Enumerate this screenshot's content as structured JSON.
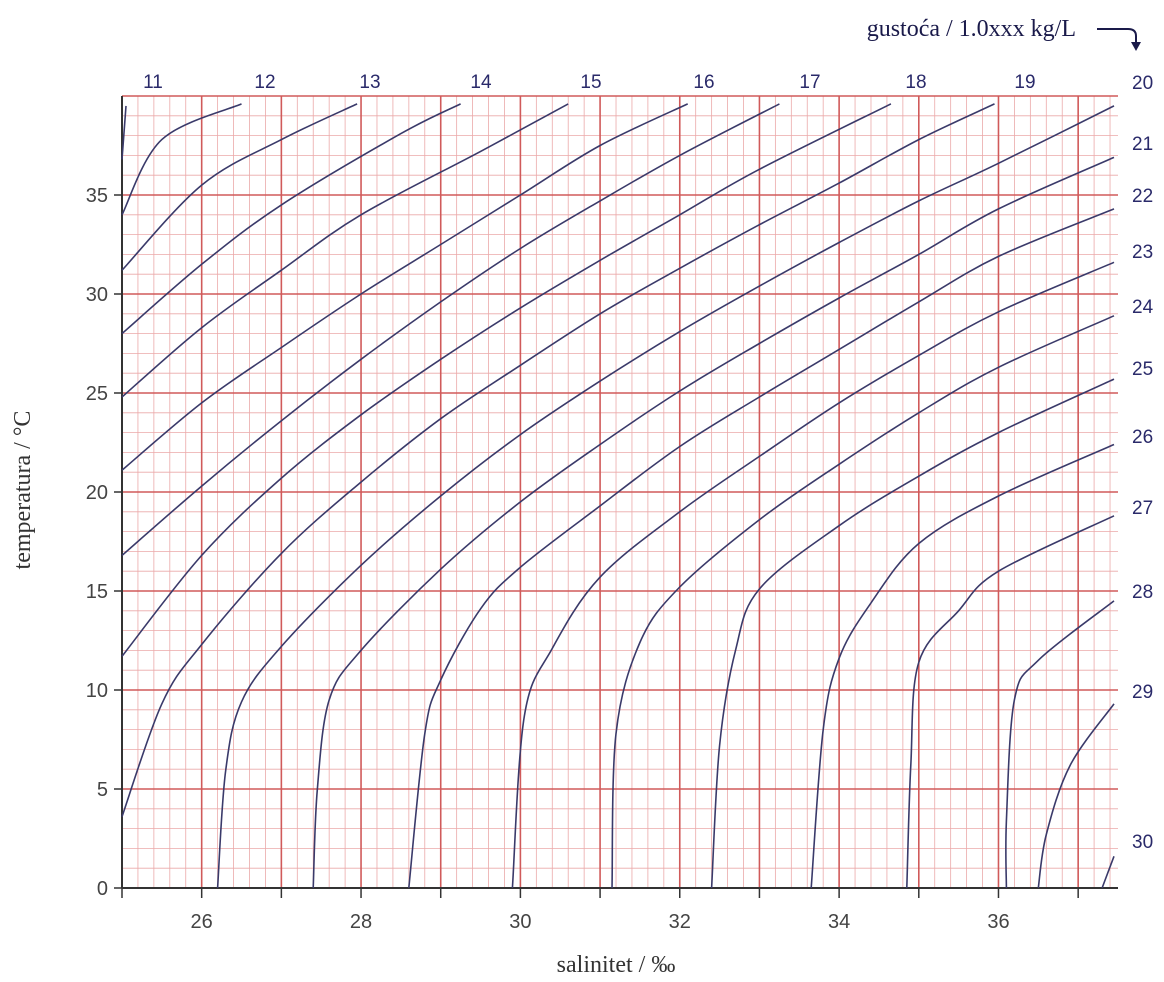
{
  "chart_data": {
    "type": "line",
    "title": "",
    "xlabel": "salinitet / ‰",
    "ylabel": "temperatura / °C",
    "legend_title": "gustoća / 1.0xxx kg/L",
    "xlim": [
      25,
      37.5
    ],
    "ylim": [
      0,
      40
    ],
    "grid": true,
    "x_ticks": [
      26,
      28,
      30,
      32,
      34,
      36
    ],
    "y_ticks": [
      0,
      5,
      10,
      15,
      20,
      25,
      30,
      35
    ],
    "colors": {
      "grid_major": "#d05a5a",
      "grid_minor": "#eba9a9",
      "curve": "#3a3a6a",
      "axis": "#333333"
    },
    "series": [
      {
        "name": "11",
        "points": [
          [
            25.05,
            39.5
          ],
          [
            25.0,
            36.8
          ]
        ]
      },
      {
        "name": "12",
        "points": [
          [
            26.5,
            39.6
          ],
          [
            25.5,
            37.8
          ],
          [
            25.0,
            34.0
          ]
        ]
      },
      {
        "name": "13",
        "points": [
          [
            27.95,
            39.6
          ],
          [
            27.0,
            37.8
          ],
          [
            26.0,
            35.5
          ],
          [
            25.0,
            31.2
          ]
        ]
      },
      {
        "name": "14",
        "points": [
          [
            29.25,
            39.6
          ],
          [
            28.5,
            38.1
          ],
          [
            27.0,
            34.5
          ],
          [
            26.0,
            31.5
          ],
          [
            25.0,
            28.0
          ]
        ]
      },
      {
        "name": "15",
        "points": [
          [
            30.6,
            39.6
          ],
          [
            29.5,
            37.2
          ],
          [
            28.0,
            34.0
          ],
          [
            27.0,
            31.2
          ],
          [
            26.0,
            28.3
          ],
          [
            25.0,
            24.8
          ]
        ]
      },
      {
        "name": "16",
        "points": [
          [
            32.1,
            39.6
          ],
          [
            31.0,
            37.5
          ],
          [
            30.0,
            35.0
          ],
          [
            29.0,
            32.5
          ],
          [
            28.0,
            30.0
          ],
          [
            27.0,
            27.3
          ],
          [
            26.0,
            24.5
          ],
          [
            25.0,
            21.1
          ]
        ]
      },
      {
        "name": "17",
        "points": [
          [
            33.25,
            39.6
          ],
          [
            32.0,
            37.0
          ],
          [
            31.0,
            34.7
          ],
          [
            30.0,
            32.3
          ],
          [
            29.0,
            29.6
          ],
          [
            28.0,
            26.7
          ],
          [
            27.0,
            23.6
          ],
          [
            26.0,
            20.3
          ],
          [
            25.0,
            16.8
          ]
        ]
      },
      {
        "name": "18",
        "points": [
          [
            34.65,
            39.6
          ],
          [
            33.0,
            36.3
          ],
          [
            32.0,
            34.0
          ],
          [
            31.0,
            31.7
          ],
          [
            30.0,
            29.3
          ],
          [
            29.0,
            26.7
          ],
          [
            28.0,
            23.9
          ],
          [
            27.0,
            20.7
          ],
          [
            26.0,
            16.8
          ],
          [
            25.0,
            11.7
          ]
        ]
      },
      {
        "name": "19",
        "points": [
          [
            35.95,
            39.6
          ],
          [
            35.0,
            37.8
          ],
          [
            34.0,
            35.6
          ],
          [
            33.0,
            33.5
          ],
          [
            32.0,
            31.3
          ],
          [
            31.0,
            29.0
          ],
          [
            30.0,
            26.4
          ],
          [
            29.0,
            23.7
          ],
          [
            28.0,
            20.5
          ],
          [
            27.0,
            16.9
          ],
          [
            26.0,
            12.3
          ],
          [
            25.5,
            9.3
          ],
          [
            25.0,
            3.6
          ]
        ]
      },
      {
        "name": "20",
        "points": [
          [
            37.45,
            39.5
          ],
          [
            36.0,
            36.6
          ],
          [
            35.0,
            34.7
          ],
          [
            34.0,
            32.6
          ],
          [
            33.0,
            30.4
          ],
          [
            32.0,
            28.1
          ],
          [
            31.0,
            25.6
          ],
          [
            30.0,
            22.9
          ],
          [
            29.0,
            19.8
          ],
          [
            28.0,
            16.3
          ],
          [
            27.0,
            12.2
          ],
          [
            26.5,
            9.4
          ],
          [
            26.3,
            5.9
          ],
          [
            26.2,
            0.0
          ]
        ]
      },
      {
        "name": "21",
        "points": [
          [
            37.45,
            36.9
          ],
          [
            36.0,
            34.3
          ],
          [
            35.0,
            32.0
          ],
          [
            34.0,
            29.8
          ],
          [
            33.0,
            27.5
          ],
          [
            32.0,
            25.1
          ],
          [
            31.0,
            22.4
          ],
          [
            30.0,
            19.5
          ],
          [
            29.0,
            16.1
          ],
          [
            28.0,
            12.0
          ],
          [
            27.6,
            9.5
          ],
          [
            27.45,
            4.9
          ],
          [
            27.4,
            0.0
          ]
        ]
      },
      {
        "name": "22",
        "points": [
          [
            37.45,
            34.3
          ],
          [
            36.0,
            31.9
          ],
          [
            35.0,
            29.6
          ],
          [
            34.0,
            27.2
          ],
          [
            33.0,
            24.8
          ],
          [
            32.0,
            22.3
          ],
          [
            31.0,
            19.3
          ],
          [
            30.0,
            16.2
          ],
          [
            29.5,
            14.1
          ],
          [
            29.0,
            10.5
          ],
          [
            28.8,
            7.8
          ],
          [
            28.6,
            0.0
          ]
        ]
      },
      {
        "name": "23",
        "points": [
          [
            37.45,
            31.6
          ],
          [
            36.0,
            29.1
          ],
          [
            35.0,
            26.9
          ],
          [
            34.0,
            24.5
          ],
          [
            33.0,
            21.8
          ],
          [
            32.0,
            19.0
          ],
          [
            31.0,
            15.7
          ],
          [
            30.4,
            12.1
          ],
          [
            30.05,
            8.7
          ],
          [
            29.9,
            0.0
          ]
        ]
      },
      {
        "name": "24",
        "points": [
          [
            37.45,
            28.9
          ],
          [
            36.0,
            26.3
          ],
          [
            35.0,
            24.0
          ],
          [
            34.0,
            21.4
          ],
          [
            33.0,
            18.6
          ],
          [
            32.0,
            15.2
          ],
          [
            31.5,
            12.4
          ],
          [
            31.2,
            7.8
          ],
          [
            31.15,
            0.0
          ]
        ]
      },
      {
        "name": "25",
        "points": [
          [
            37.45,
            25.7
          ],
          [
            36.0,
            23.0
          ],
          [
            35.0,
            20.8
          ],
          [
            34.0,
            18.3
          ],
          [
            33.0,
            15.1
          ],
          [
            32.7,
            12.0
          ],
          [
            32.5,
            7.2
          ],
          [
            32.4,
            0.0
          ]
        ]
      },
      {
        "name": "26",
        "points": [
          [
            37.45,
            22.4
          ],
          [
            36.0,
            19.8
          ],
          [
            35.0,
            17.4
          ],
          [
            34.4,
            14.4
          ],
          [
            34.0,
            11.6
          ],
          [
            33.8,
            8.0
          ],
          [
            33.65,
            0.0
          ]
        ]
      },
      {
        "name": "27",
        "points": [
          [
            37.45,
            18.8
          ],
          [
            36.0,
            16.0
          ],
          [
            35.5,
            14.0
          ],
          [
            35.0,
            11.4
          ],
          [
            34.9,
            6.2
          ],
          [
            34.85,
            0.0
          ]
        ]
      },
      {
        "name": "28",
        "points": [
          [
            37.45,
            14.5
          ],
          [
            36.5,
            11.5
          ],
          [
            36.2,
            9.5
          ],
          [
            36.1,
            3.4
          ],
          [
            36.1,
            0.0
          ]
        ]
      },
      {
        "name": "29",
        "points": [
          [
            37.45,
            9.3
          ],
          [
            36.9,
            6.2
          ],
          [
            36.6,
            2.7
          ],
          [
            36.5,
            0.0
          ]
        ]
      },
      {
        "name": "30",
        "points": [
          [
            37.45,
            1.6
          ],
          [
            37.3,
            0.0
          ]
        ]
      }
    ]
  }
}
